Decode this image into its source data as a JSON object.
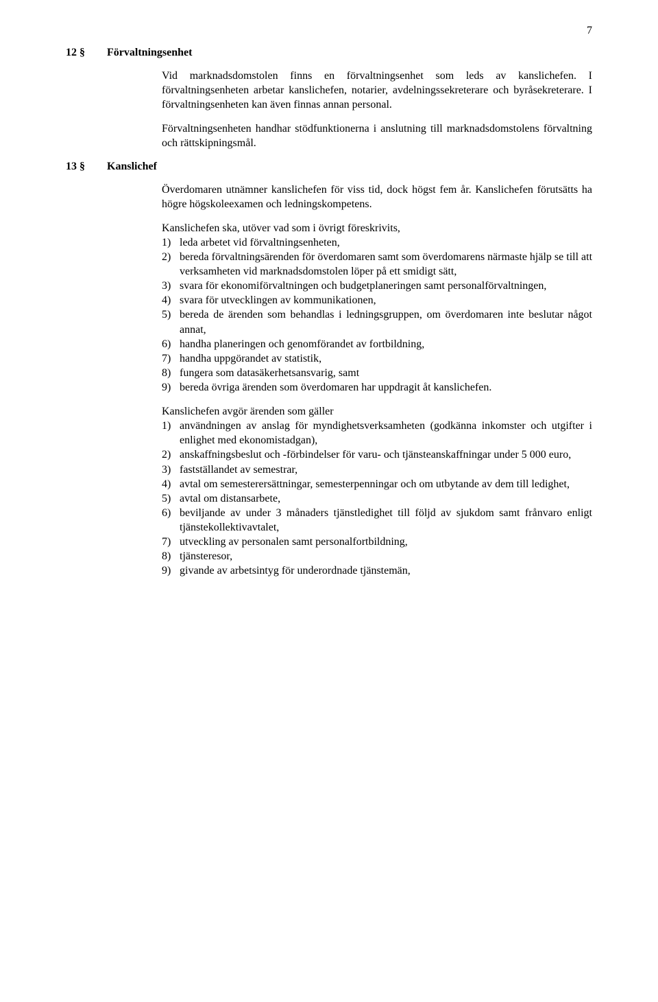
{
  "page_number": "7",
  "s12": {
    "num": "12 §",
    "title": "Förvaltningsenhet",
    "p1": "Vid marknadsdomstolen finns en förvaltningsenhet som leds av kanslichefen. I förvaltningsenheten arbetar kanslichefen, notarier, avdelningssekreterare och byråsekreterare. I förvaltningsenheten kan även finnas annan personal.",
    "p2": "Förvaltningsenheten handhar stödfunktionerna i anslutning till marknadsdomstolens förvaltning och rättskipningsmål."
  },
  "s13": {
    "num": "13 §",
    "title": "Kanslichef",
    "p1": "Överdomaren utnämner kanslichefen för viss tid, dock högst fem år. Kanslichefen förutsätts ha högre högskoleexamen och ledningskompetens.",
    "listA_intro": "Kanslichefen ska, utöver vad som i övrigt föreskrivits,",
    "listA": [
      {
        "n": "1)",
        "t": "leda arbetet vid förvaltningsenheten,"
      },
      {
        "n": "2)",
        "t": "bereda förvaltningsärenden för överdomaren samt som överdomarens närmaste hjälp se till att verksamheten vid marknadsdomstolen löper på ett smidigt sätt,"
      },
      {
        "n": "3)",
        "t": "svara för ekonomiförvaltningen och budgetplaneringen samt personalförvaltningen,"
      },
      {
        "n": "4)",
        "t": "svara för utvecklingen av kommunikationen,"
      },
      {
        "n": "5)",
        "t": "bereda de ärenden som behandlas i ledningsgruppen, om överdomaren inte beslutar något annat,"
      },
      {
        "n": "6)",
        "t": "handha planeringen och genomförandet av fortbildning,"
      },
      {
        "n": "7)",
        "t": "handha uppgörandet av statistik,"
      },
      {
        "n": "8)",
        "t": "fungera som datasäkerhetsansvarig, samt"
      },
      {
        "n": "9)",
        "t": "bereda övriga ärenden som överdomaren har uppdragit åt kanslichefen."
      }
    ],
    "listB_intro": "Kanslichefen avgör ärenden som gäller",
    "listB": [
      {
        "n": "1)",
        "t": "användningen av anslag för myndighetsverksamheten (godkänna inkomster och utgifter i enlighet med ekonomistadgan),"
      },
      {
        "n": "2)",
        "t": "anskaffningsbeslut och -förbindelser för varu- och tjänsteanskaffningar under 5 000 euro,"
      },
      {
        "n": "3)",
        "t": "fastställandet av semestrar,"
      },
      {
        "n": "4)",
        "t": "avtal om semesterersättningar, semesterpenningar och om utbytande av dem till ledighet,"
      },
      {
        "n": "5)",
        "t": "avtal om distansarbete,"
      },
      {
        "n": "6)",
        "t": "beviljande av under 3 månaders tjänstledighet till följd av sjukdom samt frånvaro enligt tjänstekollektivavtalet,"
      },
      {
        "n": "7)",
        "t": "utveckling av personalen samt personalfortbildning,"
      },
      {
        "n": "8)",
        "t": "tjänsteresor,"
      },
      {
        "n": "9)",
        "t": "givande av arbetsintyg för underordnade tjänstemän,"
      }
    ]
  }
}
